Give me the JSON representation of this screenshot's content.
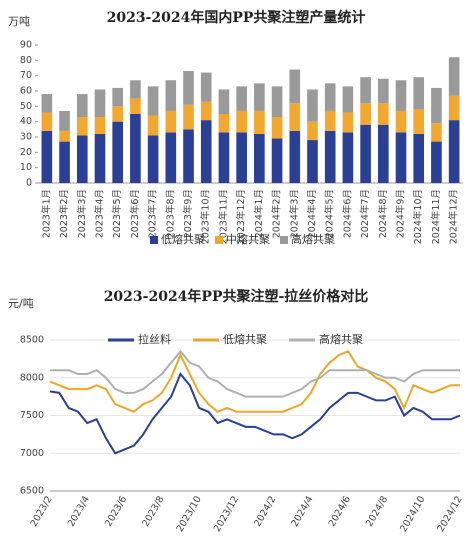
{
  "chart_data": [
    {
      "type": "bar",
      "stacked": true,
      "title": "2023-2024年国内PP共聚注塑产量统计",
      "y_label": "万吨",
      "categories": [
        "2023年1月",
        "2023年2月",
        "2023年3月",
        "2023年4月",
        "2023年5月",
        "2023年6月",
        "2023年7月",
        "2023年8月",
        "2023年9月",
        "2023年10月",
        "2023年11月",
        "2023年12月",
        "2024年1月",
        "2024年2月",
        "2024年3月",
        "2024年4月",
        "2024年5月",
        "2024年6月",
        "2024年7月",
        "2024年8月",
        "2024年9月",
        "2024年10月",
        "2024年11月",
        "2024年12月"
      ],
      "series": [
        {
          "name": "低熔共聚",
          "color": "#2b3f94",
          "values": [
            34,
            27,
            31,
            32,
            40,
            45,
            31,
            33,
            35,
            41,
            33,
            33,
            32,
            29,
            34,
            28,
            34,
            33,
            38,
            38,
            33,
            32,
            27,
            41
          ]
        },
        {
          "name": "中熔共聚",
          "color": "#f2a72e",
          "values": [
            12,
            7,
            12,
            11,
            10,
            10,
            13,
            14,
            16,
            12,
            12,
            14,
            15,
            14,
            18,
            12,
            13,
            13,
            14,
            14,
            14,
            16,
            12,
            16
          ]
        },
        {
          "name": "高熔共聚",
          "color": "#9a9a9a",
          "values": [
            12,
            13,
            15,
            18,
            12,
            12,
            19,
            20,
            22,
            19,
            16,
            16,
            18,
            20,
            22,
            21,
            18,
            17,
            17,
            16,
            20,
            21,
            23,
            25
          ]
        }
      ],
      "ylim": [
        0,
        90
      ],
      "yticks": [
        0,
        10,
        20,
        30,
        40,
        50,
        60,
        70,
        80,
        90
      ],
      "grid": false,
      "legend": "bottom"
    },
    {
      "type": "line",
      "title": "2023-2024年PP共聚注塑-拉丝价格对比",
      "y_label": "元/吨",
      "categories": [
        "2023/2",
        null,
        null,
        null,
        "2023/4",
        null,
        null,
        null,
        "2023/6",
        null,
        null,
        null,
        "2023/8",
        null,
        null,
        null,
        "2023/10",
        null,
        null,
        null,
        "2023/12",
        null,
        null,
        null,
        "2024/2",
        null,
        null,
        null,
        "2024/4",
        null,
        null,
        null,
        "2024/6",
        null,
        null,
        null,
        "2024/8",
        null,
        null,
        null,
        "2024/10",
        null,
        null,
        null,
        "2024/12"
      ],
      "series": [
        {
          "name": "拉丝料",
          "color": "#2b3f94",
          "values": [
            7820,
            7800,
            7600,
            7550,
            7400,
            7450,
            7200,
            7000,
            7050,
            7100,
            7250,
            7450,
            7600,
            7750,
            8050,
            7900,
            7600,
            7550,
            7400,
            7450,
            7400,
            7350,
            7350,
            7300,
            7250,
            7250,
            7200,
            7250,
            7350,
            7450,
            7600,
            7700,
            7800,
            7800,
            7750,
            7700,
            7700,
            7750,
            7500,
            7600,
            7550,
            7450,
            7450,
            7450,
            7500
          ]
        },
        {
          "name": "低熔共聚",
          "color": "#e8a82a",
          "values": [
            7950,
            7900,
            7850,
            7850,
            7850,
            7900,
            7850,
            7650,
            7600,
            7550,
            7650,
            7700,
            7800,
            8000,
            8300,
            8050,
            7800,
            7650,
            7550,
            7600,
            7550,
            7550,
            7550,
            7550,
            7550,
            7550,
            7600,
            7650,
            7800,
            8050,
            8200,
            8300,
            8350,
            8150,
            8100,
            8000,
            7950,
            7850,
            7600,
            7900,
            7850,
            7800,
            7850,
            7900,
            7900
          ]
        },
        {
          "name": "高熔共聚",
          "color": "#b0b0b0",
          "values": [
            8100,
            8100,
            8100,
            8050,
            8050,
            8100,
            8000,
            7850,
            7800,
            7800,
            7850,
            7950,
            8050,
            8200,
            8350,
            8200,
            8150,
            8000,
            7950,
            7850,
            7800,
            7750,
            7750,
            7750,
            7750,
            7750,
            7800,
            7850,
            7950,
            8000,
            8100,
            8100,
            8100,
            8100,
            8100,
            8050,
            8000,
            8000,
            7950,
            8050,
            8100,
            8100,
            8100,
            8100,
            8100
          ]
        }
      ],
      "ylim": [
        6500,
        8500
      ],
      "yticks": [
        6500,
        7000,
        7500,
        8000,
        8500
      ],
      "grid": true,
      "legend": "top"
    }
  ]
}
